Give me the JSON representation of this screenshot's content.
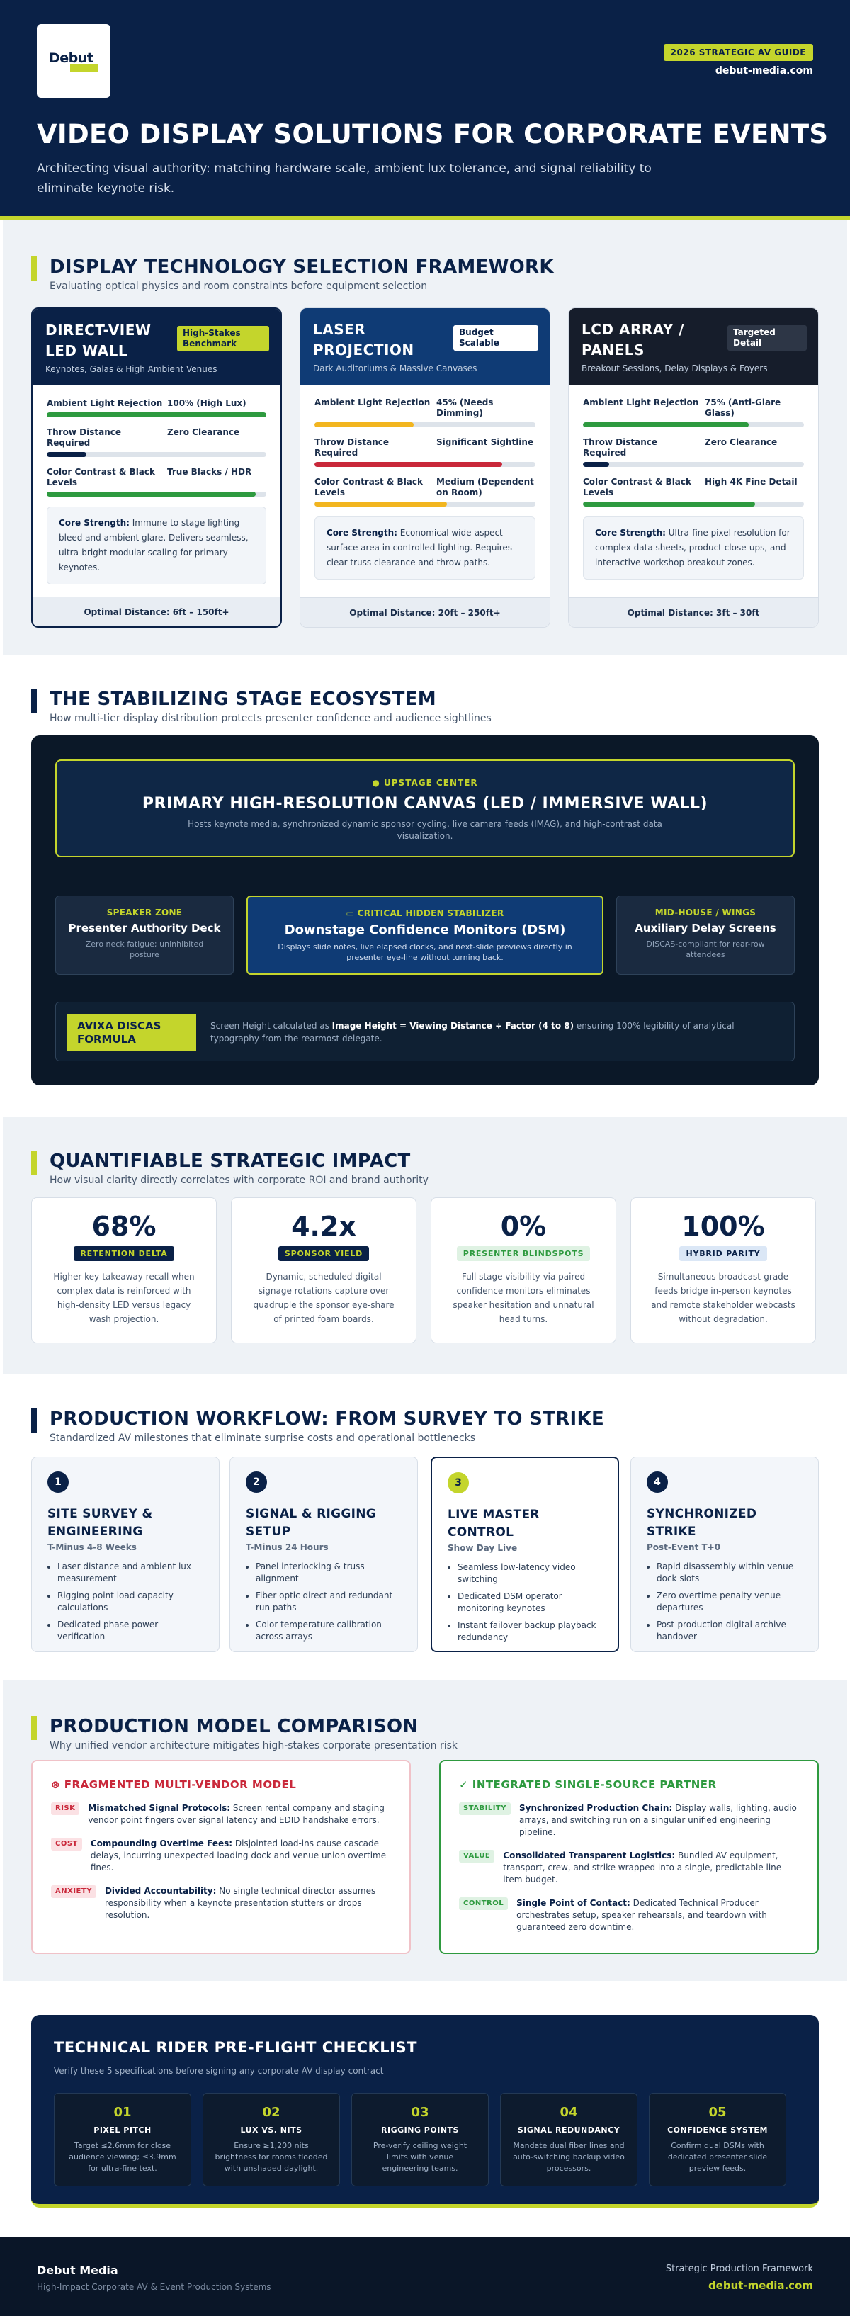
{
  "header": {
    "logo_text": "Debut",
    "badge": "2026 STRATEGIC AV GUIDE",
    "site": "debut-media.com",
    "title": "VIDEO DISPLAY SOLUTIONS FOR CORPORATE EVENTS",
    "subtitle": "Architecting visual authority: matching hardware scale, ambient lux tolerance, and signal reliability to eliminate keynote risk."
  },
  "colors": {
    "navy": "#0a2147",
    "accent": "#c4d52c",
    "green": "#2e9a3f",
    "red": "#c9283a",
    "yellow": "#f2b51f"
  },
  "framework": {
    "title": "DISPLAY TECHNOLOGY SELECTION FRAMEWORK",
    "subtitle": "Evaluating optical physics and room constraints before equipment selection",
    "cards": [
      {
        "name": "DIRECT-VIEW LED WALL",
        "badge": "High-Stakes Benchmark",
        "venue": "Keynotes, Galas & High Ambient Venues",
        "metrics": [
          {
            "label": "Ambient Light Rejection",
            "value": "100% (High Lux)",
            "level": 1.0,
            "color": "#2e9a3f"
          },
          {
            "label": "Throw Distance Required",
            "value": "Zero Clearance",
            "level": 0.18,
            "color": "#0a2147"
          },
          {
            "label": "Color Contrast & Black Levels",
            "value": "True Blacks / HDR",
            "level": 0.95,
            "color": "#2e9a3f"
          }
        ],
        "strength_label": "Core Strength:",
        "strength_text": "Immune to stage lighting bleed and ambient glare. Delivers seamless, ultra-bright modular scaling for primary keynotes.",
        "footer": "Optimal Distance: 6ft – 150ft+"
      },
      {
        "name": "LASER PROJECTION",
        "badge": "Budget Scalable",
        "venue": "Dark Auditoriums & Massive Canvases",
        "metrics": [
          {
            "label": "Ambient Light Rejection",
            "value": "45% (Needs Dimming)",
            "level": 0.45,
            "color": "#f2b51f"
          },
          {
            "label": "Throw Distance Required",
            "value": "Significant Sightline",
            "level": 0.85,
            "color": "#c9283a"
          },
          {
            "label": "Color Contrast & Black Levels",
            "value": "Medium (Dependent on Room)",
            "level": 0.6,
            "color": "#f2b51f"
          }
        ],
        "strength_label": "Core Strength:",
        "strength_text": "Economical wide-aspect surface area in controlled lighting. Requires clear truss clearance and throw paths.",
        "footer": "Optimal Distance: 20ft – 250ft+"
      },
      {
        "name": "LCD ARRAY / PANELS",
        "badge": "Targeted Detail",
        "venue": "Breakout Sessions, Delay Displays & Foyers",
        "metrics": [
          {
            "label": "Ambient Light Rejection",
            "value": "75% (Anti-Glare Glass)",
            "level": 0.75,
            "color": "#2e9a3f"
          },
          {
            "label": "Throw Distance Required",
            "value": "Zero Clearance",
            "level": 0.12,
            "color": "#0a2147"
          },
          {
            "label": "Color Contrast & Black Levels",
            "value": "High 4K Fine Detail",
            "level": 0.78,
            "color": "#2e9a3f"
          }
        ],
        "strength_label": "Core Strength:",
        "strength_text": "Ultra-fine pixel resolution for complex data sheets, product close-ups, and interactive workshop breakout zones.",
        "footer": "Optimal Distance: 3ft – 30ft"
      }
    ]
  },
  "ecosystem": {
    "title": "THE STABILIZING STAGE ECOSYSTEM",
    "subtitle": "How multi-tier display distribution protects presenter confidence and audience sightlines",
    "canvas_tag": "UPSTAGE CENTER",
    "canvas_title": "PRIMARY HIGH-RESOLUTION CANVAS (LED / IMMERSIVE WALL)",
    "canvas_desc": "Hosts keynote media, synchronized dynamic sponsor cycling, live camera feeds (IMAG), and high-contrast data visualization.",
    "left_tag": "SPEAKER ZONE",
    "left_title": "Presenter Authority Deck",
    "left_desc": "Zero neck fatigue; uninhibited posture",
    "mid_tag": "CRITICAL HIDDEN STABILIZER",
    "mid_title": "Downstage Confidence Monitors (DSM)",
    "mid_desc": "Displays slide notes, live elapsed clocks, and next-slide previews directly in presenter eye-line without turning back.",
    "right_tag": "MID-HOUSE / WINGS",
    "right_title": "Auxiliary Delay Screens",
    "right_desc": "DISCAS-compliant for rear-row attendees",
    "formula_tag": "AVIXA DISCAS FORMULA",
    "formula_pre": "Screen Height calculated as ",
    "formula_bold": "Image Height = Viewing Distance ÷ Factor (4 to 8)",
    "formula_post": " ensuring 100% legibility of analytical typography from the rearmost delegate."
  },
  "impact": {
    "title": "QUANTIFIABLE STRATEGIC IMPACT",
    "subtitle": "How visual clarity directly correlates with corporate ROI and brand authority",
    "stats": [
      {
        "value": "68%",
        "tag": "RETENTION DELTA",
        "desc": "Higher key-takeaway recall when complex data is reinforced with high-density LED versus legacy wash projection."
      },
      {
        "value": "4.2x",
        "tag": "SPONSOR YIELD",
        "desc": "Dynamic, scheduled digital signage rotations capture over quadruple the sponsor eye-share of printed foam boards."
      },
      {
        "value": "0%",
        "tag": "PRESENTER BLINDSPOTS",
        "desc": "Full stage visibility via paired confidence monitors eliminates speaker hesitation and unnatural head turns."
      },
      {
        "value": "100%",
        "tag": "HYBRID PARITY",
        "desc": "Simultaneous broadcast-grade feeds bridge in-person keynotes and remote stakeholder webcasts without degradation."
      }
    ]
  },
  "workflow": {
    "title": "PRODUCTION WORKFLOW: FROM SURVEY TO STRIKE",
    "subtitle": "Standardized AV milestones that eliminate surprise costs and operational bottlenecks",
    "steps": [
      {
        "num": "1",
        "title": "SITE SURVEY & ENGINEERING",
        "time": "T-Minus 4-8 Weeks",
        "items": [
          "Laser distance and ambient lux measurement",
          "Rigging point load capacity calculations",
          "Dedicated phase power verification"
        ]
      },
      {
        "num": "2",
        "title": "SIGNAL & RIGGING SETUP",
        "time": "T-Minus 24 Hours",
        "items": [
          "Panel interlocking & truss alignment",
          "Fiber optic direct and redundant run paths",
          "Color temperature calibration across arrays"
        ]
      },
      {
        "num": "3",
        "title": "LIVE MASTER CONTROL",
        "time": "Show Day Live",
        "items": [
          "Seamless low-latency video switching",
          "Dedicated DSM operator monitoring keynotes",
          "Instant failover backup playback redundancy"
        ]
      },
      {
        "num": "4",
        "title": "SYNCHRONIZED STRIKE",
        "time": "Post-Event T+0",
        "items": [
          "Rapid disassembly within venue dock slots",
          "Zero overtime penalty venue departures",
          "Post-production digital archive handover"
        ]
      }
    ]
  },
  "comparison": {
    "title": "PRODUCTION MODEL COMPARISON",
    "subtitle": "Why unified vendor architecture mitigates high-stakes corporate presentation risk",
    "bad_title": "FRAGMENTED MULTI-VENDOR MODEL",
    "bad_rows": [
      {
        "tag": "RISK",
        "bold": "Mismatched Signal Protocols:",
        "text": " Screen rental company and staging vendor point fingers over signal latency and EDID handshake errors."
      },
      {
        "tag": "COST",
        "bold": "Compounding Overtime Fees:",
        "text": " Disjointed load-ins cause cascade delays, incurring unexpected loading dock and venue union overtime fines."
      },
      {
        "tag": "ANXIETY",
        "bold": "Divided Accountability:",
        "text": " No single technical director assumes responsibility when a keynote presentation stutters or drops resolution."
      }
    ],
    "good_title": "INTEGRATED SINGLE-SOURCE PARTNER",
    "good_rows": [
      {
        "tag": "STABILITY",
        "bold": "Synchronized Production Chain:",
        "text": " Display walls, lighting, audio arrays, and switching run on a singular unified engineering pipeline."
      },
      {
        "tag": "VALUE",
        "bold": "Consolidated Transparent Logistics:",
        "text": " Bundled AV equipment, transport, crew, and strike wrapped into a single, predictable line-item budget."
      },
      {
        "tag": "CONTROL",
        "bold": "Single Point of Contact:",
        "text": " Dedicated Technical Producer orchestrates setup, speaker rehearsals, and teardown with guaranteed zero downtime."
      }
    ]
  },
  "rider": {
    "title": "TECHNICAL RIDER PRE-FLIGHT CHECKLIST",
    "subtitle": "Verify these 5 specifications before signing any corporate AV display contract",
    "items": [
      {
        "num": "01",
        "title": "PIXEL PITCH",
        "desc": "Target ≤2.6mm for close audience viewing; ≤3.9mm for ultra-fine text."
      },
      {
        "num": "02",
        "title": "LUX VS. NITS",
        "desc": "Ensure ≥1,200 nits brightness for rooms flooded with unshaded daylight."
      },
      {
        "num": "03",
        "title": "RIGGING POINTS",
        "desc": "Pre-verify ceiling weight limits with venue engineering teams."
      },
      {
        "num": "04",
        "title": "SIGNAL REDUNDANCY",
        "desc": "Mandate dual fiber lines and auto-switching backup video processors."
      },
      {
        "num": "05",
        "title": "CONFIDENCE SYSTEM",
        "desc": "Confirm dual DSMs with dedicated presenter slide preview feeds."
      }
    ]
  },
  "footer": {
    "brand": "Debut Media",
    "tagline": "High-Impact Corporate AV & Event Production Systems",
    "right_label": "Strategic Production Framework",
    "right_site": "debut-media.com"
  }
}
